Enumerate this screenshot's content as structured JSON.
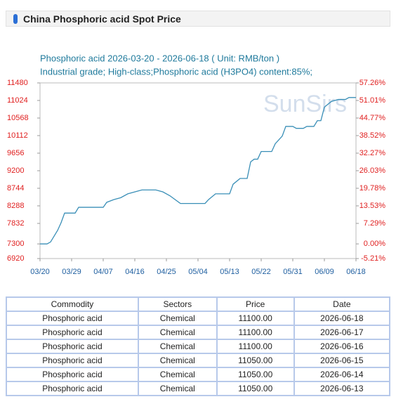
{
  "header": {
    "title": "China Phosphoric acid Spot Price"
  },
  "chart_data": {
    "type": "line",
    "title": "Phosphoric acid 2026-03-20 - 2026-06-18    ( Unit: RMB/ton )",
    "subtitle": "Industrial grade; High-class;Phosphoric acid (H3PO4) content:85%;",
    "watermark": "SunSirs",
    "xlim": [
      0,
      90
    ],
    "xticks": [
      {
        "value": 0,
        "label": "03/20"
      },
      {
        "value": 9,
        "label": "03/29"
      },
      {
        "value": 18,
        "label": "04/07"
      },
      {
        "value": 27,
        "label": "04/16"
      },
      {
        "value": 36,
        "label": "04/25"
      },
      {
        "value": 45,
        "label": "05/04"
      },
      {
        "value": 54,
        "label": "05/13"
      },
      {
        "value": 63,
        "label": "05/22"
      },
      {
        "value": 72,
        "label": "05/31"
      },
      {
        "value": 81,
        "label": "06/09"
      },
      {
        "value": 90,
        "label": "06/18"
      }
    ],
    "ylim": [
      6920,
      11480
    ],
    "yticks": [
      11480,
      11024,
      10568,
      10112,
      9656,
      9200,
      8744,
      8288,
      7832,
      7300,
      6920
    ],
    "y2lim": [
      -5.21,
      57.26
    ],
    "y2ticks": [
      {
        "value": 57.26,
        "label": "57.26%"
      },
      {
        "value": 51.01,
        "label": "51.01%"
      },
      {
        "value": 44.77,
        "label": "44.77%"
      },
      {
        "value": 38.52,
        "label": "38.52%"
      },
      {
        "value": 32.27,
        "label": "32.27%"
      },
      {
        "value": 26.03,
        "label": "26.03%"
      },
      {
        "value": 19.78,
        "label": "19.78%"
      },
      {
        "value": 13.53,
        "label": "13.53%"
      },
      {
        "value": 7.29,
        "label": "7.29%"
      },
      {
        "value": 0,
        "label": "0.00%"
      },
      {
        "value": -5.21,
        "label": "-5.21%"
      }
    ],
    "axis_color": "#e02020",
    "series": [
      {
        "color": "#3a8fb7",
        "x": [
          0,
          2,
          3,
          4,
          5,
          6,
          7,
          10,
          11,
          18,
          19,
          21,
          23,
          25,
          29,
          33,
          35,
          37,
          40,
          47,
          48,
          50,
          54,
          55,
          57,
          59,
          60,
          61,
          62,
          63,
          66,
          67,
          69,
          70,
          72,
          73,
          75,
          76,
          78,
          79,
          80,
          81,
          83,
          85,
          87,
          88,
          90
        ],
        "values": [
          7300,
          7300,
          7350,
          7500,
          7650,
          7850,
          8100,
          8100,
          8250,
          8250,
          8380,
          8450,
          8500,
          8600,
          8700,
          8700,
          8650,
          8550,
          8350,
          8350,
          8450,
          8600,
          8600,
          8850,
          9000,
          9000,
          9430,
          9500,
          9500,
          9700,
          9700,
          9900,
          10100,
          10350,
          10350,
          10300,
          10300,
          10350,
          10350,
          10500,
          10500,
          10850,
          11000,
          11050,
          11050,
          11100,
          11100
        ]
      }
    ]
  },
  "table": {
    "header": [
      "Commodity",
      "Sectors",
      "Price",
      "Date"
    ],
    "rows": [
      [
        "Phosphoric acid",
        "Chemical",
        "11100.00",
        "2026-06-18"
      ],
      [
        "Phosphoric acid",
        "Chemical",
        "11100.00",
        "2026-06-17"
      ],
      [
        "Phosphoric acid",
        "Chemical",
        "11100.00",
        "2026-06-16"
      ],
      [
        "Phosphoric acid",
        "Chemical",
        "11050.00",
        "2026-06-15"
      ],
      [
        "Phosphoric acid",
        "Chemical",
        "11050.00",
        "2026-06-14"
      ],
      [
        "Phosphoric acid",
        "Chemical",
        "11050.00",
        "2026-06-13"
      ]
    ]
  }
}
